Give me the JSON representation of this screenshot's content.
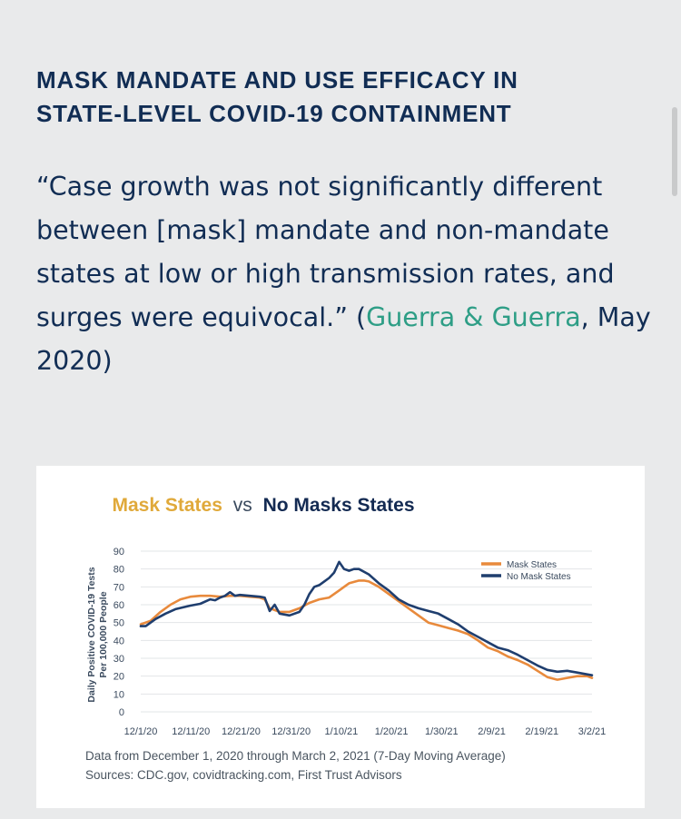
{
  "heading": {
    "line1": "MASK MANDATE AND USE EFFICACY IN",
    "line2": "STATE-LEVEL COVID-19 CONTAINMENT"
  },
  "quote": {
    "text": "“Case growth was not significantly different between [mask] mandate and non-mandate states at low or high transmission rates, and surges were equivocal.” (",
    "link_text": "Guerra & Guerra",
    "suffix": ", May 2020)"
  },
  "colors": {
    "heading": "#112d54",
    "link": "#2e9e86",
    "mask_series": "#e88a3c",
    "no_mask_series": "#1f3e6e"
  },
  "chart_data": {
    "type": "line",
    "title_part1": "Mask States",
    "title_vs": "vs",
    "title_part2": "No Masks States",
    "ylabel_line1": "Daily Positive COVID-19 Tests",
    "ylabel_line2": "Per 100,000 People",
    "ylim": [
      0,
      90
    ],
    "yticks": [
      0,
      10,
      20,
      30,
      40,
      50,
      60,
      70,
      80,
      90
    ],
    "xticks": [
      "12/1/20",
      "12/11/20",
      "12/21/20",
      "12/31/20",
      "1/10/21",
      "1/20/21",
      "1/30/21",
      "2/9/21",
      "2/19/21",
      "3/2/21"
    ],
    "x_range_days": [
      0,
      91
    ],
    "legend": "top-right",
    "series": [
      {
        "name": "Mask States",
        "color": "#e88a3c",
        "points": [
          [
            0,
            49
          ],
          [
            2,
            51
          ],
          [
            4,
            56
          ],
          [
            6,
            60
          ],
          [
            8,
            63
          ],
          [
            10,
            64.5
          ],
          [
            12,
            65
          ],
          [
            14,
            65
          ],
          [
            16,
            64.5
          ],
          [
            18,
            65
          ],
          [
            20,
            65
          ],
          [
            22,
            64.5
          ],
          [
            24,
            64
          ],
          [
            25,
            63
          ],
          [
            26,
            58
          ],
          [
            27,
            57
          ],
          [
            28,
            56
          ],
          [
            30,
            56
          ],
          [
            32,
            58
          ],
          [
            34,
            61
          ],
          [
            36,
            63
          ],
          [
            38,
            64
          ],
          [
            39,
            66
          ],
          [
            40,
            68
          ],
          [
            42,
            72
          ],
          [
            44,
            73.5
          ],
          [
            45,
            73.5
          ],
          [
            46,
            73
          ],
          [
            48,
            70
          ],
          [
            50,
            66
          ],
          [
            52,
            62
          ],
          [
            54,
            58
          ],
          [
            56,
            54
          ],
          [
            58,
            50
          ],
          [
            60,
            48.5
          ],
          [
            62,
            47
          ],
          [
            64,
            45.5
          ],
          [
            66,
            43.5
          ],
          [
            68,
            40
          ],
          [
            70,
            36
          ],
          [
            72,
            34
          ],
          [
            74,
            31
          ],
          [
            76,
            29
          ],
          [
            78,
            26.5
          ],
          [
            80,
            23
          ],
          [
            82,
            19.5
          ],
          [
            84,
            18
          ],
          [
            86,
            19
          ],
          [
            88,
            20
          ],
          [
            90,
            20
          ],
          [
            91,
            19
          ]
        ]
      },
      {
        "name": "No Mask States",
        "color": "#1f3e6e",
        "points": [
          [
            0,
            48
          ],
          [
            1,
            48
          ],
          [
            3,
            52
          ],
          [
            5,
            55
          ],
          [
            7,
            57.5
          ],
          [
            10,
            59.5
          ],
          [
            12,
            60.5
          ],
          [
            14,
            63
          ],
          [
            15,
            62.5
          ],
          [
            16,
            64
          ],
          [
            17,
            65
          ],
          [
            18,
            67
          ],
          [
            19,
            65
          ],
          [
            20,
            65.5
          ],
          [
            22,
            65
          ],
          [
            24,
            64.5
          ],
          [
            25,
            64
          ],
          [
            26,
            56.5
          ],
          [
            27,
            60
          ],
          [
            28,
            55
          ],
          [
            30,
            54
          ],
          [
            32,
            56
          ],
          [
            33,
            60
          ],
          [
            34,
            66
          ],
          [
            35,
            70
          ],
          [
            36,
            71
          ],
          [
            37,
            73
          ],
          [
            38,
            75
          ],
          [
            39,
            78
          ],
          [
            40,
            84
          ],
          [
            41,
            80
          ],
          [
            42,
            79
          ],
          [
            43,
            80
          ],
          [
            44,
            80
          ],
          [
            46,
            77
          ],
          [
            48,
            72
          ],
          [
            50,
            68
          ],
          [
            52,
            63
          ],
          [
            54,
            60
          ],
          [
            56,
            58
          ],
          [
            58,
            56.5
          ],
          [
            60,
            55
          ],
          [
            62,
            52
          ],
          [
            64,
            49
          ],
          [
            66,
            45
          ],
          [
            68,
            42
          ],
          [
            70,
            39
          ],
          [
            72,
            36
          ],
          [
            74,
            34.5
          ],
          [
            76,
            32
          ],
          [
            78,
            29
          ],
          [
            80,
            26
          ],
          [
            82,
            23.5
          ],
          [
            84,
            22.5
          ],
          [
            86,
            23
          ],
          [
            88,
            22
          ],
          [
            90,
            21
          ],
          [
            91,
            20.5
          ]
        ]
      }
    ],
    "footnote1": "Data from December 1, 2020 through March 2, 2021 (7-Day Moving Average)",
    "footnote2": "Sources: CDC.gov, covidtracking.com, First Trust Advisors"
  }
}
